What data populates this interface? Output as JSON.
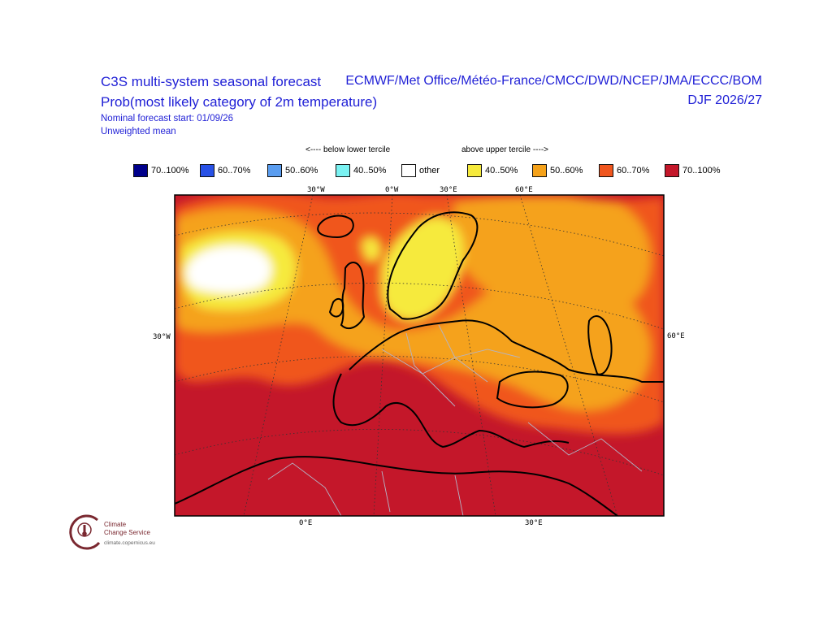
{
  "header": {
    "title_line1": "C3S multi-system seasonal forecast",
    "title_line2": "Prob(most likely category of 2m temperature)",
    "subtitle_line1": "Nominal forecast start: 01/09/26",
    "subtitle_line2": "Unweighted mean",
    "centres": "ECMWF/Met Office/Météo-France/CMCC/DWD/NCEP/JMA/ECCC/BOM",
    "season": "DJF 2026/27"
  },
  "legend": {
    "below_label": "<---- below lower tercile",
    "above_label": "above upper tercile ---->",
    "items": [
      {
        "label": "70..100%",
        "color": "#00008b"
      },
      {
        "label": "60..70%",
        "color": "#2851e6"
      },
      {
        "label": "50..60%",
        "color": "#5a9df0"
      },
      {
        "label": "40..50%",
        "color": "#7af2f2"
      },
      {
        "label": "other",
        "color": "#ffffff"
      },
      {
        "label": "40..50%",
        "color": "#f6ea3c"
      },
      {
        "label": "50..60%",
        "color": "#f5a21a"
      },
      {
        "label": "60..70%",
        "color": "#f0561e"
      },
      {
        "label": "70..100%",
        "color": "#c4172a"
      }
    ]
  },
  "map_axes": {
    "top_lons": [
      "30°W",
      "0°W",
      "30°E",
      "60°E"
    ],
    "bottom_lons": [
      "0°E",
      "30°E"
    ],
    "left_lat": "30°W",
    "right_lat": "60°E"
  },
  "logo": {
    "line1": "Climate",
    "line2": "Change Service",
    "url": "climate.copernicus.eu"
  }
}
